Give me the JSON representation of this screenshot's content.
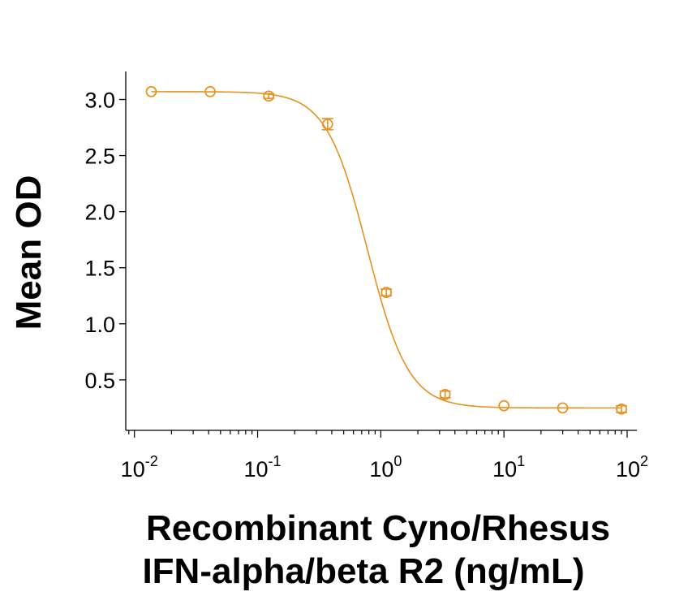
{
  "chart_data": {
    "type": "scatter",
    "xscale": "log",
    "xlim": [
      0.0085,
      120
    ],
    "ylim": [
      0.05,
      3.25
    ],
    "grid": false,
    "legend": "none",
    "xlabel_lines": [
      "Recombinant Cyno/Rhesus",
      "IFN-alpha/beta R2 (ng/mL)"
    ],
    "ylabel": "Mean OD",
    "x_ticks": [
      {
        "value": 0.01,
        "base": "10",
        "exp": "-2"
      },
      {
        "value": 0.1,
        "base": "10",
        "exp": "-1"
      },
      {
        "value": 1,
        "base": "10",
        "exp": "0"
      },
      {
        "value": 10,
        "base": "10",
        "exp": "1"
      },
      {
        "value": 100,
        "base": "10",
        "exp": "2"
      }
    ],
    "y_ticks": [
      {
        "value": 0.5,
        "label": "0.5"
      },
      {
        "value": 1.0,
        "label": "1.0"
      },
      {
        "value": 1.5,
        "label": "1.5"
      },
      {
        "value": 2.0,
        "label": "2.0"
      },
      {
        "value": 2.5,
        "label": "2.5"
      },
      {
        "value": 3.0,
        "label": "3.0"
      }
    ],
    "color": "#E8911E",
    "series": [
      {
        "x": [
          0.0137,
          0.0412,
          0.123,
          0.37,
          1.11,
          3.33,
          10,
          30,
          90
        ],
        "y": [
          3.07,
          3.07,
          3.03,
          2.78,
          1.28,
          0.37,
          0.27,
          0.25,
          0.24
        ],
        "err": [
          0,
          0,
          0.02,
          0.05,
          0.03,
          0.03,
          0,
          0,
          0.03
        ]
      }
    ],
    "fit": {
      "model": "4PL",
      "top": 3.07,
      "bottom": 0.25,
      "ec50": 0.78,
      "hill": 2.6
    }
  }
}
